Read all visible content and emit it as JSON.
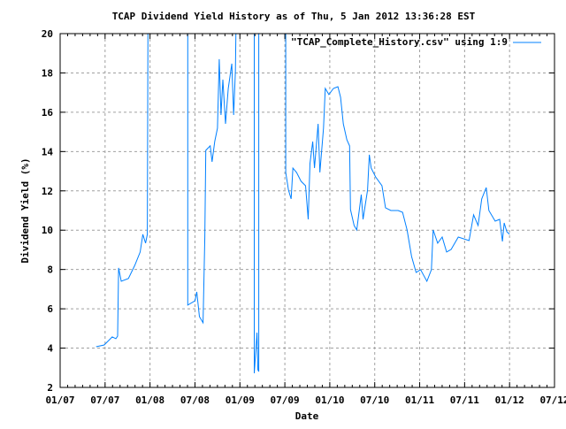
{
  "chart_data": {
    "type": "line",
    "title": "TCAP Dividend Yield History as of Thu, 5 Jan 2012 13:36:28 EST",
    "xlabel": "Date",
    "ylabel": "Dividend Yield (%)",
    "xlim": [
      2007.0,
      2012.5
    ],
    "ylim": [
      2,
      20
    ],
    "grid": true,
    "legend_placement": "top-right",
    "x_ticks": [
      {
        "value": 2007.0,
        "label": "01/07"
      },
      {
        "value": 2007.5,
        "label": "07/07"
      },
      {
        "value": 2008.0,
        "label": "01/08"
      },
      {
        "value": 2008.5,
        "label": "07/08"
      },
      {
        "value": 2009.0,
        "label": "01/09"
      },
      {
        "value": 2009.5,
        "label": "07/09"
      },
      {
        "value": 2010.0,
        "label": "01/10"
      },
      {
        "value": 2010.5,
        "label": "07/10"
      },
      {
        "value": 2011.0,
        "label": "01/11"
      },
      {
        "value": 2011.5,
        "label": "07/11"
      },
      {
        "value": 2012.0,
        "label": "01/12"
      },
      {
        "value": 2012.5,
        "label": "07/12"
      }
    ],
    "y_ticks": [
      {
        "value": 2,
        "label": "2"
      },
      {
        "value": 4,
        "label": "4"
      },
      {
        "value": 6,
        "label": "6"
      },
      {
        "value": 8,
        "label": "8"
      },
      {
        "value": 10,
        "label": "10"
      },
      {
        "value": 12,
        "label": "12"
      },
      {
        "value": 14,
        "label": "14"
      },
      {
        "value": 16,
        "label": "16"
      },
      {
        "value": 18,
        "label": "18"
      },
      {
        "value": 20,
        "label": "20"
      }
    ],
    "series": [
      {
        "name": "\"TCAP_Complete_History.csv\" using 1:9",
        "color": "#0080ff",
        "x": [
          2007.4,
          2007.49,
          2007.58,
          2007.62,
          2007.64,
          2007.65,
          2007.68,
          2007.76,
          2007.83,
          2007.89,
          2007.92,
          2007.95,
          2007.97,
          2007.98,
          2008.42,
          2008.42,
          2008.5,
          2008.52,
          2008.55,
          2008.59,
          2008.61,
          2008.62,
          2008.67,
          2008.69,
          2008.72,
          2008.75,
          2008.77,
          2008.79,
          2008.81,
          2008.84,
          2008.87,
          2008.91,
          2008.93,
          2008.95,
          2008.97,
          2009.16,
          2009.16,
          2009.19,
          2009.2,
          2009.21,
          2009.21,
          2009.51,
          2009.51,
          2009.54,
          2009.57,
          2009.59,
          2009.63,
          2009.68,
          2009.73,
          2009.76,
          2009.78,
          2009.81,
          2009.83,
          2009.87,
          2009.89,
          2009.93,
          2009.95,
          2009.99,
          2010.04,
          2010.09,
          2010.12,
          2010.15,
          2010.19,
          2010.22,
          2010.23,
          2010.27,
          2010.3,
          2010.35,
          2010.37,
          2010.42,
          2010.44,
          2010.46,
          2010.51,
          2010.58,
          2010.62,
          2010.68,
          2010.76,
          2010.81,
          2010.86,
          2010.91,
          2010.96,
          2011.01,
          2011.08,
          2011.13,
          2011.15,
          2011.2,
          2011.25,
          2011.3,
          2011.35,
          2011.43,
          2011.55,
          2011.6,
          2011.65,
          2011.69,
          2011.74,
          2011.77,
          2011.84,
          2011.89,
          2011.92,
          2011.94,
          2011.97,
          2012.0
        ],
        "y": [
          4.07,
          4.16,
          4.57,
          4.48,
          4.61,
          8.08,
          7.4,
          7.54,
          8.21,
          8.89,
          9.79,
          9.34,
          9.79,
          25,
          25,
          6.19,
          6.41,
          6.86,
          5.6,
          5.29,
          9.65,
          14.06,
          14.29,
          13.48,
          14.51,
          15.19,
          18.7,
          15.86,
          17.66,
          15.41,
          17.21,
          18.47,
          15.86,
          18.11,
          25,
          25,
          2.72,
          4.79,
          2.9,
          2.81,
          25,
          25,
          12.94,
          12.04,
          11.59,
          13.16,
          12.94,
          12.49,
          12.26,
          10.55,
          13.39,
          14.51,
          13.16,
          15.41,
          12.94,
          15.19,
          17.21,
          16.9,
          17.21,
          17.3,
          16.76,
          15.41,
          14.6,
          14.29,
          11.05,
          10.24,
          10.01,
          11.81,
          10.55,
          12.04,
          13.84,
          13.16,
          12.71,
          12.26,
          11.14,
          11.0,
          11.0,
          10.91,
          10.01,
          8.66,
          7.85,
          7.99,
          7.4,
          7.99,
          10.01,
          9.34,
          9.65,
          8.89,
          9.02,
          9.65,
          9.47,
          10.78,
          10.24,
          11.59,
          12.17,
          11.0,
          10.46,
          10.55,
          9.43,
          10.37,
          9.92,
          9.79
        ]
      }
    ]
  }
}
